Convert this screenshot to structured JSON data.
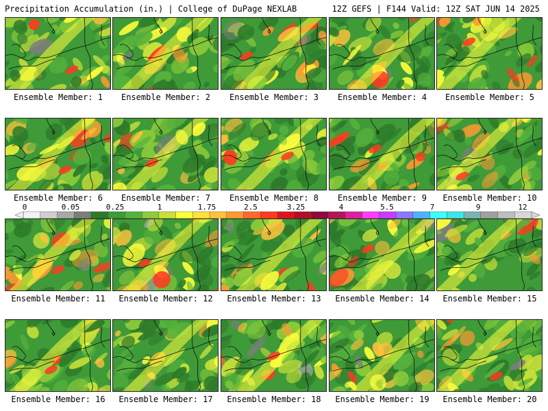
{
  "header": {
    "title": "Precipitation Accumulation (in.) | College of DuPage NEXLAB",
    "run_info": "12Z GEFS | F144 Valid: 12Z SAT JUN 14 2025"
  },
  "panels": [
    {
      "label": "Ensemble Member: 1"
    },
    {
      "label": "Ensemble Member: 2"
    },
    {
      "label": "Ensemble Member: 3"
    },
    {
      "label": "Ensemble Member: 4"
    },
    {
      "label": "Ensemble Member: 5"
    },
    {
      "label": "Ensemble Member: 6"
    },
    {
      "label": "Ensemble Member: 7"
    },
    {
      "label": "Ensemble Member: 8"
    },
    {
      "label": "Ensemble Member: 9"
    },
    {
      "label": "Ensemble Member: 10"
    },
    {
      "label": "Ensemble Member: 11"
    },
    {
      "label": "Ensemble Member: 12"
    },
    {
      "label": "Ensemble Member: 13"
    },
    {
      "label": "Ensemble Member: 14"
    },
    {
      "label": "Ensemble Member: 15"
    },
    {
      "label": "Ensemble Member: 16"
    },
    {
      "label": "Ensemble Member: 17"
    },
    {
      "label": "Ensemble Member: 18"
    },
    {
      "label": "Ensemble Member: 19"
    },
    {
      "label": "Ensemble Member: 20"
    }
  ],
  "colorbar": {
    "tick_labels": [
      "0",
      "0.05",
      "0.25",
      "1",
      "1.75",
      "2.5",
      "3.25",
      "4",
      "5.5",
      "7",
      "9",
      "12"
    ],
    "colors": [
      "#f2f2f2",
      "#cfcfcf",
      "#a8a8a8",
      "#7d7d7d",
      "#2d7a2a",
      "#3f9a38",
      "#56b23c",
      "#8ccc3a",
      "#c8e03a",
      "#ffff3c",
      "#ffe23c",
      "#ffc13c",
      "#ff9a32",
      "#ff6a28",
      "#ff3a20",
      "#e0141e",
      "#b40e28",
      "#8c0a3c",
      "#b4145a",
      "#e01ea0",
      "#ff3cff",
      "#c83cff",
      "#8c78ff",
      "#4ab4ff",
      "#3cffff",
      "#3ce6e6",
      "#78b4b4",
      "#a0a0a0",
      "#bebebe",
      "#d8d8d8"
    ]
  }
}
